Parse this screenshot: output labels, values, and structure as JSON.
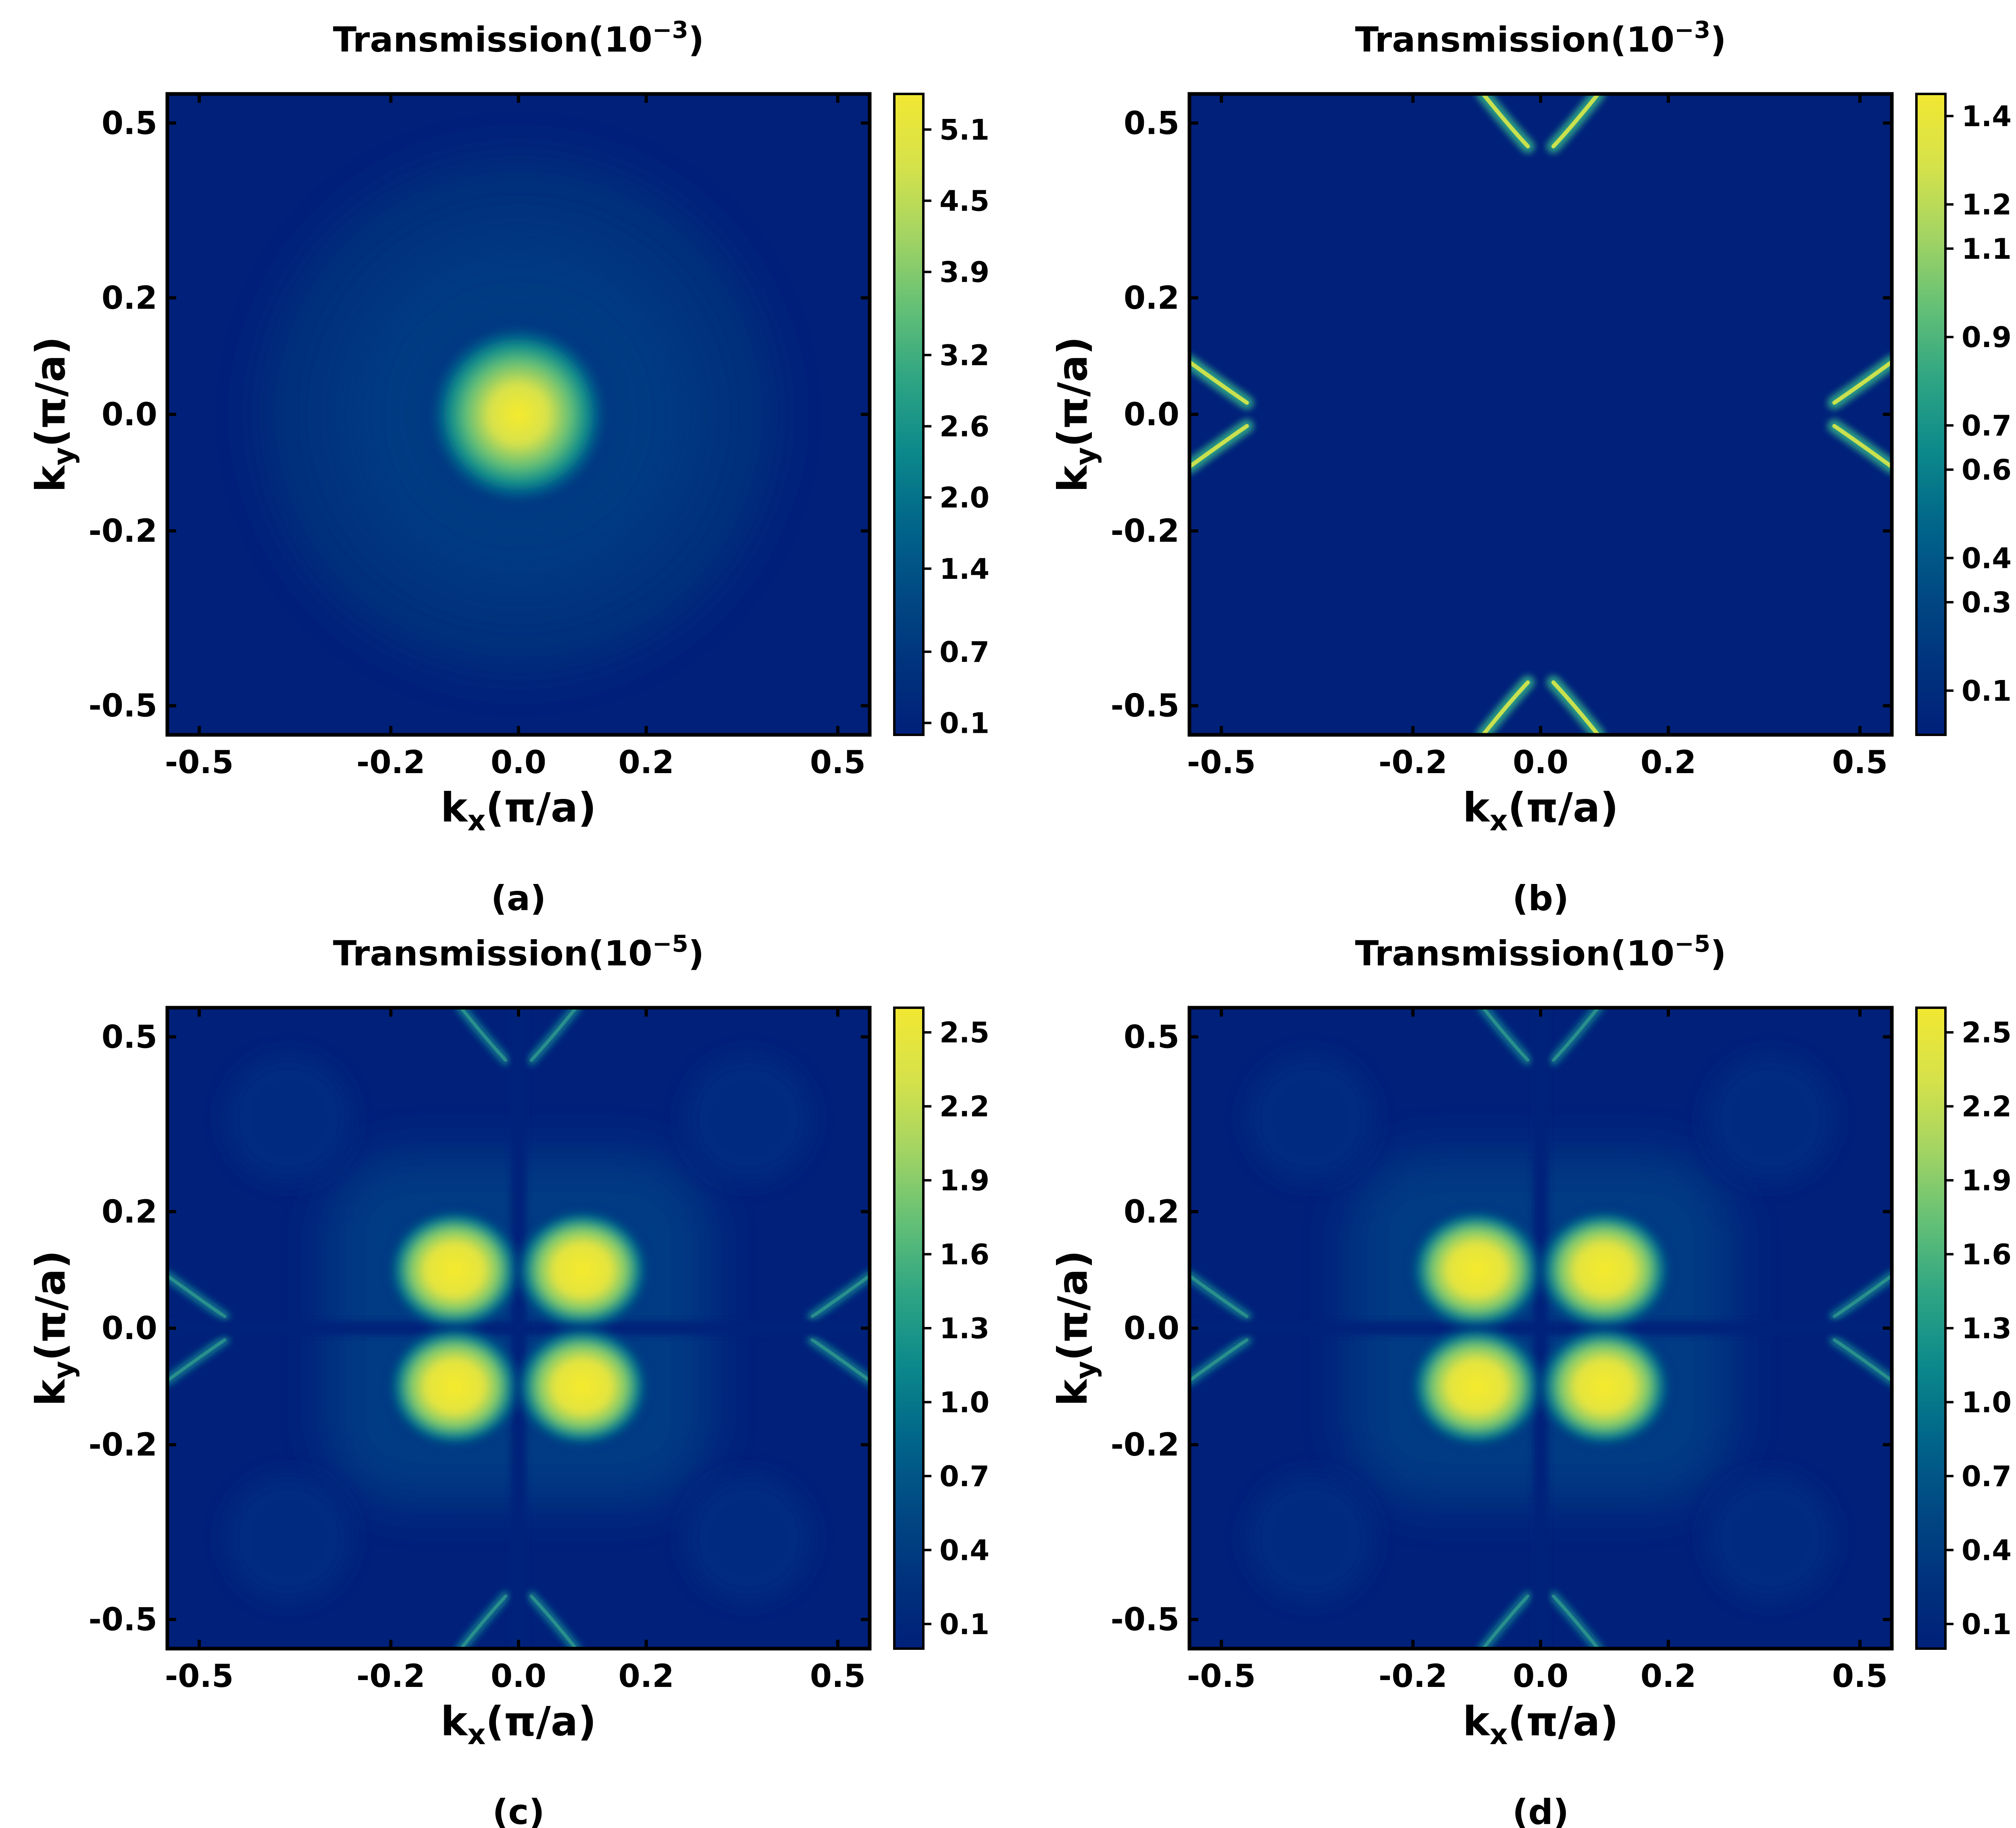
{
  "colors": {
    "colormap": [
      "#00207a",
      "#00337d",
      "#014a84",
      "#01678a",
      "#0c8a8b",
      "#2fa583",
      "#64c076",
      "#a3d463",
      "#d6e24a",
      "#f2e732"
    ],
    "frame": "#000000",
    "background": "#ffffff"
  },
  "chart_data": [
    {
      "type": "heatmap",
      "panel_label": "(a)",
      "title_prefix": "Transmission(10",
      "title_exponent": "−3",
      "title_suffix": ")",
      "xlabel_main": "k",
      "xlabel_sub": "x",
      "xlabel_rest": "(π/a)",
      "ylabel_main": "k",
      "ylabel_sub": "y",
      "ylabel_rest": "(π/a)",
      "xlim": [
        -0.55,
        0.55
      ],
      "ylim": [
        -0.55,
        0.55
      ],
      "xticks": [
        -0.5,
        -0.2,
        0.0,
        0.2,
        0.5
      ],
      "xtick_labels": [
        "-0.5",
        "-0.2",
        "0.0",
        "0.2",
        "0.5"
      ],
      "yticks": [
        0.5,
        0.2,
        0.0,
        -0.2,
        -0.5
      ],
      "ytick_labels": [
        "0.5",
        "0.2",
        "0.0",
        "-0.2",
        "-0.5"
      ],
      "colorbar": {
        "range": [
          0.0,
          5.4
        ],
        "ticks": [
          0.1,
          0.7,
          1.4,
          2.0,
          2.6,
          3.2,
          3.9,
          4.5,
          5.1
        ],
        "tick_labels": [
          "0.1",
          "0.7",
          "1.4",
          "2.0",
          "2.6",
          "3.2",
          "3.9",
          "4.5",
          "5.1"
        ]
      },
      "features": [
        {
          "kind": "central peak",
          "kx": 0.0,
          "ky": 0.0,
          "peak": 5.3
        }
      ]
    },
    {
      "type": "heatmap",
      "panel_label": "(b)",
      "title_prefix": "Transmission(10",
      "title_exponent": "−3",
      "title_suffix": ")",
      "xlabel_main": "k",
      "xlabel_sub": "x",
      "xlabel_rest": "(π/a)",
      "ylabel_main": "k",
      "ylabel_sub": "y",
      "ylabel_rest": "(π/a)",
      "xlim": [
        -0.55,
        0.55
      ],
      "ylim": [
        -0.55,
        0.55
      ],
      "xticks": [
        -0.5,
        -0.2,
        0.0,
        0.2,
        0.5
      ],
      "xtick_labels": [
        "-0.5",
        "-0.2",
        "0.0",
        "0.2",
        "0.5"
      ],
      "yticks": [
        0.5,
        0.2,
        0.0,
        -0.2,
        -0.5
      ],
      "ytick_labels": [
        "0.5",
        "0.2",
        "0.0",
        "-0.2",
        "-0.5"
      ],
      "colorbar": {
        "range": [
          0.0,
          1.45
        ],
        "ticks": [
          0.1,
          0.3,
          0.4,
          0.6,
          0.7,
          0.9,
          1.1,
          1.2,
          1.4
        ],
        "tick_labels": [
          "0.1",
          "0.3",
          "0.4",
          "0.6",
          "0.7",
          "0.9",
          "1.1",
          "1.2",
          "1.4"
        ]
      },
      "features": [
        {
          "kind": "edge arcs",
          "locations": "kx ≈ ±0.5 and ky ≈ ±0.5",
          "peak": 1.4
        }
      ]
    },
    {
      "type": "heatmap",
      "panel_label": "(c)",
      "title_prefix": "Transmission(10",
      "title_exponent": "−5",
      "title_suffix": ")",
      "xlabel_main": "k",
      "xlabel_sub": "x",
      "xlabel_rest": "(π/a)",
      "ylabel_main": "k",
      "ylabel_sub": "y",
      "ylabel_rest": "(π/a)",
      "xlim": [
        -0.55,
        0.55
      ],
      "ylim": [
        -0.55,
        0.55
      ],
      "xticks": [
        -0.5,
        -0.2,
        0.0,
        0.2,
        0.5
      ],
      "xtick_labels": [
        "-0.5",
        "-0.2",
        "0.0",
        "0.2",
        "0.5"
      ],
      "yticks": [
        0.5,
        0.2,
        0.0,
        -0.2,
        -0.5
      ],
      "ytick_labels": [
        "0.5",
        "0.2",
        "0.0",
        "-0.2",
        "-0.5"
      ],
      "colorbar": {
        "range": [
          0.0,
          2.6
        ],
        "ticks": [
          0.1,
          0.4,
          0.7,
          1.0,
          1.3,
          1.6,
          1.9,
          2.2,
          2.5
        ],
        "tick_labels": [
          "0.1",
          "0.4",
          "0.7",
          "1.0",
          "1.3",
          "1.6",
          "1.9",
          "2.2",
          "2.5"
        ]
      },
      "features": [
        {
          "kind": "four lobes",
          "kx": [
            -0.1,
            0.1
          ],
          "ky": [
            -0.1,
            0.1
          ],
          "peak": 2.55
        },
        {
          "kind": "edge arcs",
          "locations": "kx ≈ ±0.5 and ky ≈ ±0.5"
        }
      ]
    },
    {
      "type": "heatmap",
      "panel_label": "(d)",
      "title_prefix": "Transmission(10",
      "title_exponent": "−5",
      "title_suffix": ")",
      "xlabel_main": "k",
      "xlabel_sub": "x",
      "xlabel_rest": "(π/a)",
      "ylabel_main": "k",
      "ylabel_sub": "y",
      "ylabel_rest": "(π/a)",
      "xlim": [
        -0.55,
        0.55
      ],
      "ylim": [
        -0.55,
        0.55
      ],
      "xticks": [
        -0.5,
        -0.2,
        0.0,
        0.2,
        0.5
      ],
      "xtick_labels": [
        "-0.5",
        "-0.2",
        "0.0",
        "0.2",
        "0.5"
      ],
      "yticks": [
        0.5,
        0.2,
        0.0,
        -0.2,
        -0.5
      ],
      "ytick_labels": [
        "0.5",
        "0.2",
        "0.0",
        "-0.2",
        "-0.5"
      ],
      "colorbar": {
        "range": [
          0.0,
          2.6
        ],
        "ticks": [
          0.1,
          0.4,
          0.7,
          1.0,
          1.3,
          1.6,
          1.9,
          2.2,
          2.5
        ],
        "tick_labels": [
          "0.1",
          "0.4",
          "0.7",
          "1.0",
          "1.3",
          "1.6",
          "1.9",
          "2.2",
          "2.5"
        ]
      },
      "features": [
        {
          "kind": "four lobes",
          "kx": [
            -0.1,
            0.1
          ],
          "ky": [
            -0.1,
            0.1
          ],
          "peak": 2.55
        },
        {
          "kind": "edge arcs",
          "locations": "kx ≈ ±0.5 and ky ≈ ±0.5"
        }
      ]
    }
  ]
}
